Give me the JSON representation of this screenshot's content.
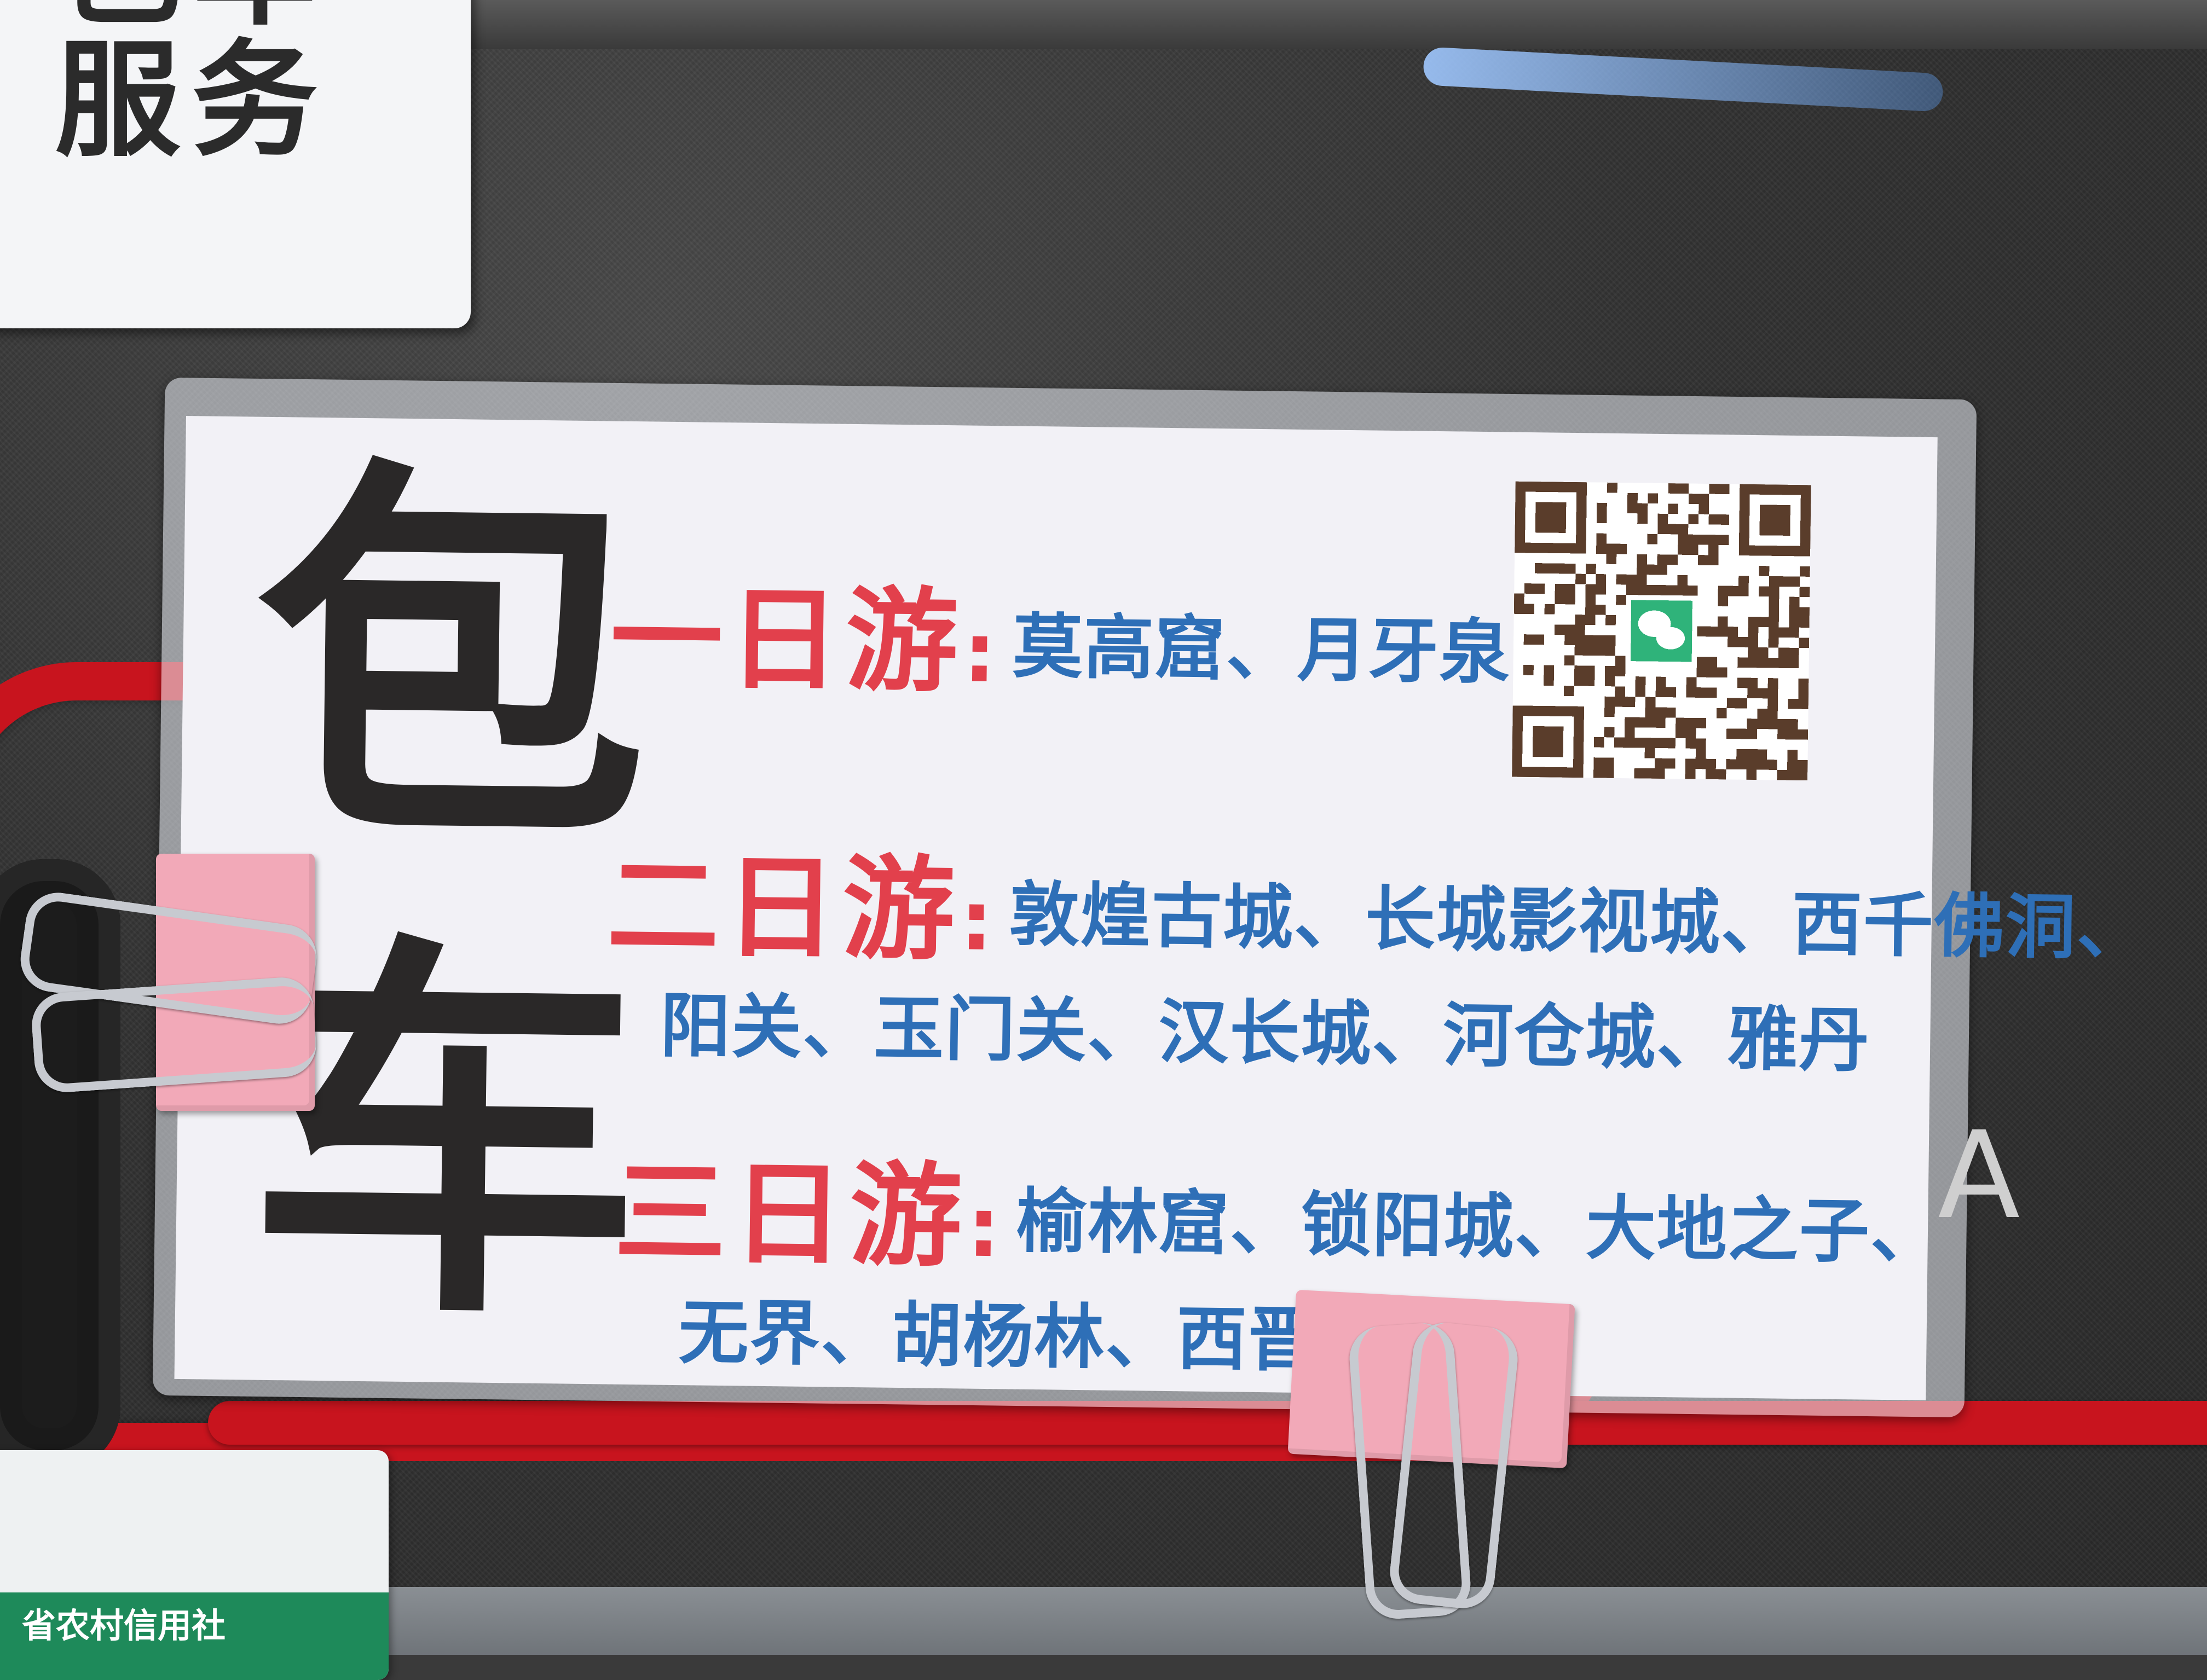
{
  "top_sign": {
    "line1": "包车",
    "line2": "服务"
  },
  "card": {
    "big_char_1": "包",
    "big_char_2": "车",
    "tours": [
      {
        "label": "一日游",
        "colon": ":",
        "places": [
          "莫高窟、月牙泉"
        ]
      },
      {
        "label": "二日游",
        "colon": ":",
        "places": [
          "敦煌古城、长城影视城、西千佛洞、",
          "阳关、玉门关、汉长城、河仓城、雅丹"
        ]
      },
      {
        "label": "三日游",
        "colon": ":",
        "places": [
          "榆林窟、锁阳城、大地之子、",
          "无界、胡杨林、西晋壁画墓"
        ]
      }
    ]
  },
  "badge": {
    "text": "省农村信用社"
  },
  "colors": {
    "label_red": "#e2404c",
    "places_blue": "#2e6fb7",
    "trim_red": "#c8141e",
    "clip_pink": "#f2a9b8"
  },
  "icons": {
    "qr": "wechat-qr-code-icon"
  }
}
